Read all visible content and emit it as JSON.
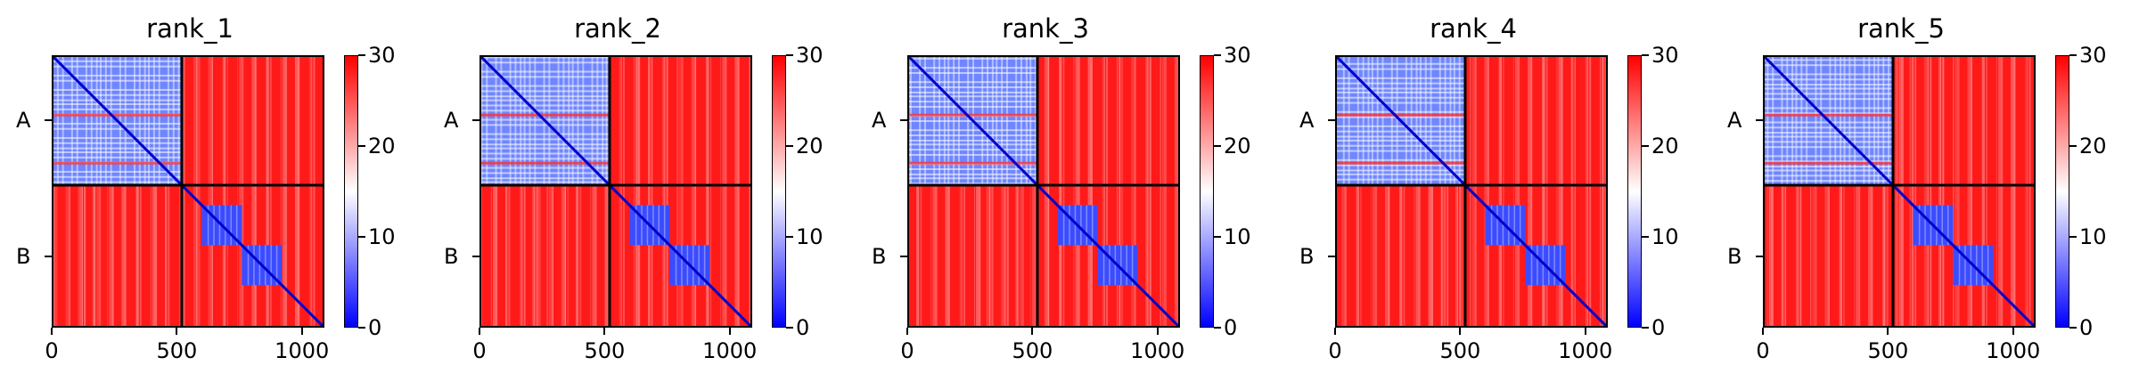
{
  "chart_data": [
    {
      "type": "heatmap",
      "title": "rank_1",
      "xticks": [
        "0",
        "500",
        "1000"
      ],
      "yticklabels": [
        "A",
        "B"
      ],
      "chain_lengths": [
        520,
        570
      ],
      "xlim": [
        0,
        1090
      ],
      "colorbar": {
        "ticks": [
          "0",
          "10",
          "20",
          "30"
        ],
        "range": [
          0,
          30
        ],
        "colors": [
          "#0000ff",
          "#ffffff",
          "#ff0000"
        ]
      },
      "domains_B": [
        [
          600,
          760
        ],
        [
          760,
          920
        ]
      ]
    },
    {
      "type": "heatmap",
      "title": "rank_2",
      "xticks": [
        "0",
        "500",
        "1000"
      ],
      "yticklabels": [
        "A",
        "B"
      ],
      "chain_lengths": [
        520,
        570
      ],
      "xlim": [
        0,
        1090
      ],
      "colorbar": {
        "ticks": [
          "0",
          "10",
          "20",
          "30"
        ],
        "range": [
          0,
          30
        ],
        "colors": [
          "#0000ff",
          "#ffffff",
          "#ff0000"
        ]
      },
      "domains_B": [
        [
          600,
          760
        ],
        [
          760,
          920
        ]
      ]
    },
    {
      "type": "heatmap",
      "title": "rank_3",
      "xticks": [
        "0",
        "500",
        "1000"
      ],
      "yticklabels": [
        "A",
        "B"
      ],
      "chain_lengths": [
        520,
        570
      ],
      "xlim": [
        0,
        1090
      ],
      "colorbar": {
        "ticks": [
          "0",
          "10",
          "20",
          "30"
        ],
        "range": [
          0,
          30
        ],
        "colors": [
          "#0000ff",
          "#ffffff",
          "#ff0000"
        ]
      },
      "domains_B": [
        [
          600,
          760
        ],
        [
          760,
          920
        ]
      ]
    },
    {
      "type": "heatmap",
      "title": "rank_4",
      "xticks": [
        "0",
        "500",
        "1000"
      ],
      "yticklabels": [
        "A",
        "B"
      ],
      "chain_lengths": [
        520,
        570
      ],
      "xlim": [
        0,
        1090
      ],
      "colorbar": {
        "ticks": [
          "0",
          "10",
          "20",
          "30"
        ],
        "range": [
          0,
          30
        ],
        "colors": [
          "#0000ff",
          "#ffffff",
          "#ff0000"
        ]
      },
      "domains_B": [
        [
          600,
          760
        ],
        [
          760,
          920
        ]
      ]
    },
    {
      "type": "heatmap",
      "title": "rank_5",
      "xticks": [
        "0",
        "500",
        "1000"
      ],
      "yticklabels": [
        "A",
        "B"
      ],
      "chain_lengths": [
        520,
        570
      ],
      "xlim": [
        0,
        1090
      ],
      "colorbar": {
        "ticks": [
          "0",
          "10",
          "20",
          "30"
        ],
        "range": [
          0,
          30
        ],
        "colors": [
          "#0000ff",
          "#ffffff",
          "#ff0000"
        ]
      },
      "domains_B": [
        [
          600,
          760
        ],
        [
          760,
          920
        ]
      ]
    }
  ]
}
